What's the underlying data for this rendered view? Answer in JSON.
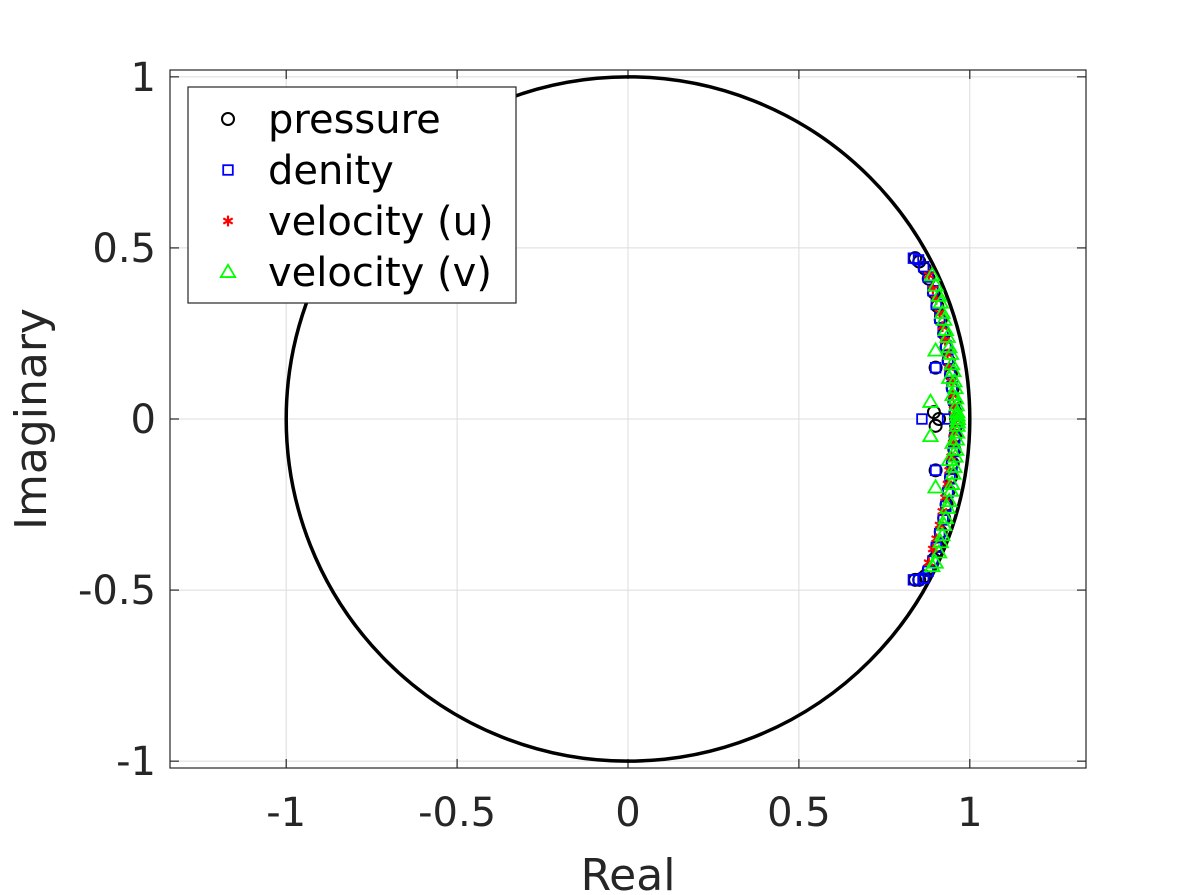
{
  "chart_data": {
    "type": "scatter",
    "title": "",
    "xlabel": "Real",
    "ylabel": "Imaginary",
    "xlim": [
      -1.34,
      1.34
    ],
    "ylim": [
      -1.02,
      1.02
    ],
    "grid": true,
    "x_ticks": [
      -1,
      -0.5,
      0,
      0.5,
      1
    ],
    "x_tick_labels": [
      "-1",
      "-0.5",
      "0",
      "0.5",
      "1"
    ],
    "y_ticks": [
      -1,
      -0.5,
      0,
      0.5,
      1
    ],
    "y_tick_labels": [
      "-1",
      "-0.5",
      "0",
      "0.5",
      "1"
    ],
    "legend_position": "top-left",
    "reference_curve": {
      "name": "unit circle",
      "radius": 1,
      "center": [
        0,
        0
      ],
      "color": "#000000"
    },
    "series": [
      {
        "name": "pressure",
        "marker": "circle",
        "color": "#000000",
        "x": [
          0.84,
          0.852,
          0.868,
          0.88,
          0.895,
          0.905,
          0.915,
          0.925,
          0.932,
          0.938,
          0.945,
          0.95,
          0.955,
          0.958,
          0.96,
          0.96,
          0.958,
          0.955,
          0.95,
          0.945,
          0.938,
          0.932,
          0.925,
          0.915,
          0.905,
          0.895,
          0.88,
          0.868,
          0.852,
          0.84,
          0.9,
          0.9,
          0.895,
          0.9,
          0.91
        ],
        "y": [
          0.47,
          0.46,
          0.44,
          0.41,
          0.37,
          0.33,
          0.29,
          0.25,
          0.21,
          0.17,
          0.13,
          0.09,
          0.05,
          0.02,
          0.0,
          -0.02,
          -0.05,
          -0.09,
          -0.13,
          -0.17,
          -0.21,
          -0.25,
          -0.29,
          -0.33,
          -0.37,
          -0.41,
          -0.44,
          -0.46,
          -0.47,
          -0.47,
          0.15,
          -0.15,
          0.02,
          -0.02,
          0.0
        ]
      },
      {
        "name": "denity",
        "marker": "square",
        "color": "#0000ff",
        "x": [
          0.835,
          0.85,
          0.865,
          0.878,
          0.892,
          0.902,
          0.912,
          0.922,
          0.93,
          0.936,
          0.942,
          0.948,
          0.953,
          0.956,
          0.958,
          0.958,
          0.956,
          0.953,
          0.948,
          0.942,
          0.936,
          0.93,
          0.922,
          0.912,
          0.902,
          0.892,
          0.878,
          0.865,
          0.85,
          0.835,
          0.9,
          0.9,
          0.86,
          0.935
        ],
        "y": [
          0.47,
          0.465,
          0.445,
          0.415,
          0.375,
          0.335,
          0.295,
          0.255,
          0.215,
          0.175,
          0.135,
          0.095,
          0.055,
          0.02,
          0.0,
          -0.02,
          -0.055,
          -0.095,
          -0.135,
          -0.175,
          -0.215,
          -0.255,
          -0.295,
          -0.335,
          -0.375,
          -0.415,
          -0.445,
          -0.465,
          -0.47,
          -0.47,
          0.15,
          -0.15,
          0.0,
          0.0
        ]
      },
      {
        "name": "velocity (u)",
        "marker": "asterisk",
        "color": "#ff0000",
        "x": [
          0.88,
          0.892,
          0.902,
          0.912,
          0.92,
          0.928,
          0.935,
          0.94,
          0.946,
          0.95,
          0.953,
          0.955,
          0.955,
          0.953,
          0.95,
          0.946,
          0.94,
          0.935,
          0.928,
          0.92,
          0.912,
          0.902,
          0.892,
          0.88
        ],
        "y": [
          0.42,
          0.38,
          0.35,
          0.31,
          0.27,
          0.23,
          0.19,
          0.15,
          0.11,
          0.07,
          0.04,
          0.01,
          -0.01,
          -0.04,
          -0.07,
          -0.11,
          -0.15,
          -0.19,
          -0.23,
          -0.27,
          -0.31,
          -0.35,
          -0.38,
          -0.42
        ]
      },
      {
        "name": "velocity (v)",
        "marker": "triangle",
        "color": "#00ff00",
        "x": [
          0.89,
          0.9,
          0.91,
          0.915,
          0.92,
          0.925,
          0.93,
          0.935,
          0.94,
          0.945,
          0.948,
          0.952,
          0.955,
          0.958,
          0.96,
          0.962,
          0.963,
          0.964,
          0.965,
          0.965,
          0.964,
          0.963,
          0.962,
          0.96,
          0.958,
          0.955,
          0.952,
          0.948,
          0.945,
          0.94,
          0.935,
          0.93,
          0.925,
          0.92,
          0.915,
          0.91,
          0.9,
          0.89,
          0.885,
          0.885,
          0.9,
          0.9,
          0.94,
          0.94,
          0.95,
          0.95
        ],
        "y": [
          0.42,
          0.39,
          0.36,
          0.34,
          0.31,
          0.29,
          0.26,
          0.24,
          0.21,
          0.19,
          0.16,
          0.14,
          0.11,
          0.09,
          0.06,
          0.04,
          0.02,
          0.01,
          0.0,
          -0.01,
          -0.02,
          -0.04,
          -0.06,
          -0.09,
          -0.11,
          -0.14,
          -0.16,
          -0.19,
          -0.21,
          -0.24,
          -0.26,
          -0.29,
          -0.31,
          -0.34,
          -0.36,
          -0.39,
          -0.42,
          -0.43,
          0.05,
          -0.05,
          0.2,
          -0.2,
          0.12,
          -0.12,
          0.07,
          -0.07
        ]
      }
    ]
  }
}
